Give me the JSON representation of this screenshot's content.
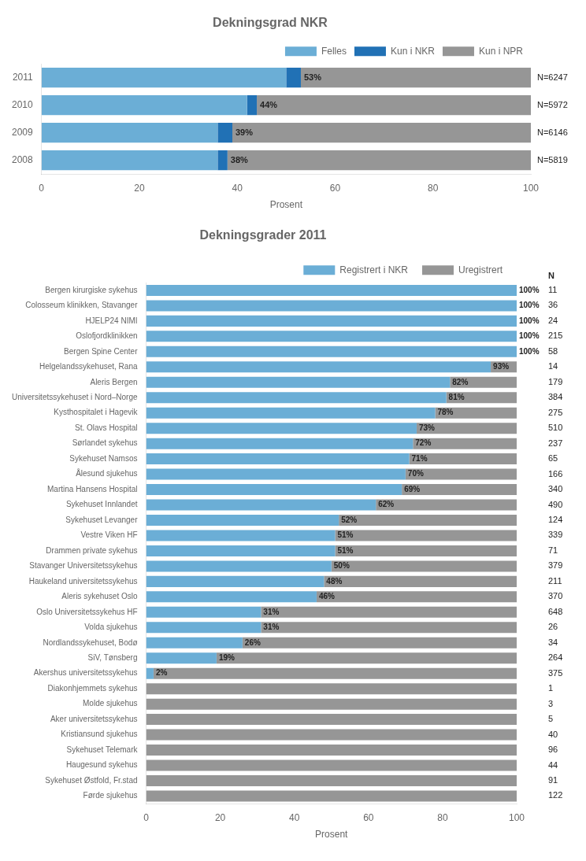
{
  "chart_data": [
    {
      "type": "bar",
      "orientation": "horizontal",
      "stacked": true,
      "title": "Dekningsgrad NKR",
      "categories": [
        "2011",
        "2010",
        "2009",
        "2008"
      ],
      "series": [
        {
          "name": "Felles",
          "color": "#6baed6",
          "values": [
            50,
            42,
            36,
            36
          ]
        },
        {
          "name": "Kun i NKR",
          "color": "#2171b5",
          "values": [
            3,
            2,
            3,
            2
          ]
        },
        {
          "name": "Kun i NPR",
          "color": "#969696",
          "values": [
            47,
            56,
            61,
            62
          ]
        }
      ],
      "annotations": [
        {
          "category": "2011",
          "value": 53,
          "text": "53%"
        },
        {
          "category": "2010",
          "value": 44,
          "text": "44%"
        },
        {
          "category": "2009",
          "value": 39,
          "text": "39%"
        },
        {
          "category": "2008",
          "value": 38,
          "text": "38%"
        }
      ],
      "n_labels": [
        "N=6247",
        "N=5972",
        "N=6146",
        "N=5819"
      ],
      "xlabel": "Prosent",
      "xlim": [
        0,
        100
      ],
      "xticks": [
        0,
        20,
        40,
        60,
        80,
        100
      ],
      "grid": false,
      "legend": "top right"
    },
    {
      "type": "bar",
      "orientation": "horizontal",
      "stacked": true,
      "title": "Dekningsgrader 2011",
      "categories": [
        "Bergen kirurgiske sykehus",
        "Colosseum klinikken, Stavanger",
        "HJELP24 NIMI",
        "Oslofjordklinikken",
        "Bergen Spine Center",
        "Helgelandssykehuset, Rana",
        "Aleris Bergen",
        "Universitetssykehuset i Nord–Norge",
        "Kysthospitalet i Hagevik",
        "St. Olavs Hospital",
        "Sørlandet sykehus",
        "Sykehuset Namsos",
        "Ålesund sjukehus",
        "Martina Hansens Hospital",
        "Sykehuset Innlandet",
        "Sykehuset Levanger",
        "Vestre Viken HF",
        "Drammen private sykehus",
        "Stavanger Universitetssykehus",
        "Haukeland universitetssykehus",
        "Aleris sykehuset Oslo",
        "Oslo Universitetssykehus HF",
        "Volda sjukehus",
        "Nordlandssykehuset, Bodø",
        "SiV, Tønsberg",
        "Akershus universitetssykehus",
        "Diakonhjemmets sykehus",
        "Molde sjukehus",
        "Aker universitetssykehus",
        "Kristiansund sjukehus",
        "Sykehuset Telemark",
        "Haugesund sykehus",
        "Sykehuset Østfold, Fr.stad",
        "Førde sjukehus"
      ],
      "series": [
        {
          "name": "Registrert i NKR",
          "color": "#6baed6",
          "values": [
            100,
            100,
            100,
            100,
            100,
            93,
            82,
            81,
            78,
            73,
            72,
            71,
            70,
            69,
            62,
            52,
            51,
            51,
            50,
            48,
            46,
            31,
            31,
            26,
            19,
            2,
            0,
            0,
            0,
            0,
            0,
            0,
            0,
            0
          ],
          "data_labels": true,
          "value_labels": [
            "100%",
            "100%",
            "100%",
            "100%",
            "100%",
            "93%",
            "82%",
            "81%",
            "78%",
            "73%",
            "72%",
            "71%",
            "70%",
            "69%",
            "62%",
            "52%",
            "51%",
            "51%",
            "50%",
            "48%",
            "46%",
            "31%",
            "31%",
            "26%",
            "19%",
            "2%",
            null,
            null,
            null,
            null,
            null,
            null,
            null,
            null
          ]
        },
        {
          "name": "Uregistrert",
          "color": "#969696",
          "values": [
            0,
            0,
            0,
            0,
            0,
            7,
            18,
            19,
            22,
            27,
            28,
            29,
            30,
            31,
            38,
            48,
            49,
            49,
            50,
            52,
            54,
            69,
            69,
            74,
            81,
            98,
            100,
            100,
            100,
            100,
            100,
            100,
            100,
            100
          ]
        }
      ],
      "n_header": "N",
      "n_values": [
        11,
        36,
        24,
        215,
        58,
        14,
        179,
        384,
        275,
        510,
        237,
        65,
        166,
        340,
        490,
        124,
        339,
        71,
        379,
        211,
        370,
        648,
        26,
        34,
        264,
        375,
        1,
        3,
        5,
        40,
        96,
        44,
        91,
        122
      ],
      "xlabel": "Prosent",
      "xlim": [
        0,
        100
      ],
      "xticks": [
        0,
        20,
        40,
        60,
        80,
        100
      ],
      "grid": false,
      "legend": "top right"
    }
  ]
}
